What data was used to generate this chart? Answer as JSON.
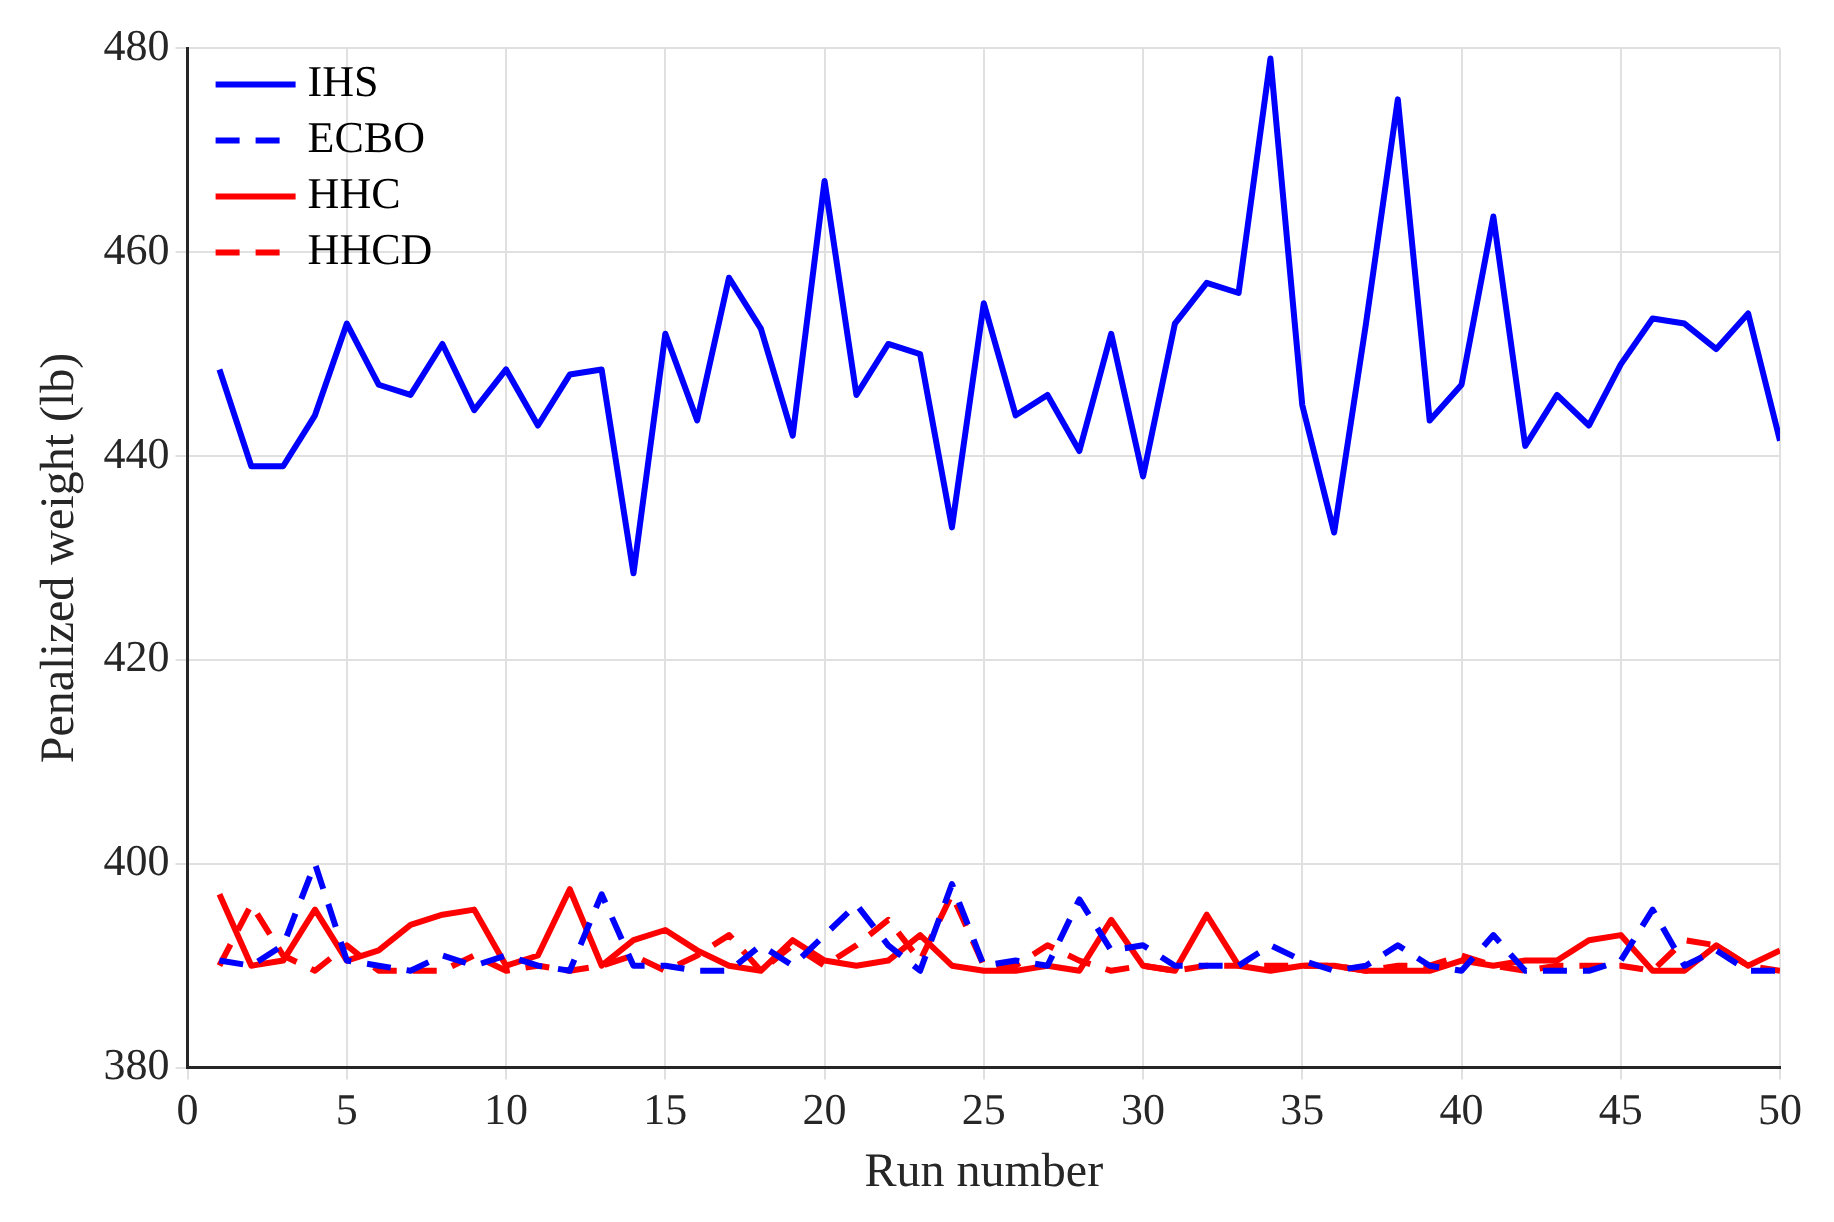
{
  "chart_data": {
    "type": "line",
    "xlabel": "Run number",
    "ylabel": "Penalized weight (lb)",
    "x": [
      1,
      2,
      3,
      4,
      5,
      6,
      7,
      8,
      9,
      10,
      11,
      12,
      13,
      14,
      15,
      16,
      17,
      18,
      19,
      20,
      21,
      22,
      23,
      24,
      25,
      26,
      27,
      28,
      29,
      30,
      31,
      32,
      33,
      34,
      35,
      36,
      37,
      38,
      39,
      40,
      41,
      42,
      43,
      44,
      45,
      46,
      47,
      48,
      49,
      50
    ],
    "series": [
      {
        "name": "IHS",
        "color": "#0000ff",
        "line_style": "solid",
        "values": [
          448.5,
          439,
          439,
          444,
          453,
          447,
          446,
          451,
          444.5,
          448.5,
          443,
          448,
          448.5,
          428.5,
          452,
          443.5,
          457.5,
          452.5,
          442,
          467,
          446,
          451,
          450,
          433,
          455,
          444,
          446,
          440.5,
          452,
          438,
          453,
          457,
          456,
          479,
          445,
          432.5,
          453,
          475,
          443.5,
          447,
          463.5,
          441,
          446,
          443,
          449,
          453.5,
          453,
          450.5,
          454,
          441.5
        ]
      },
      {
        "name": "ECBO",
        "color": "#0000ff",
        "line_style": "dashed",
        "values": [
          390.5,
          390,
          392,
          400,
          390.5,
          390,
          389.5,
          391,
          390,
          391,
          390,
          389.5,
          397,
          390,
          390,
          389.5,
          389.5,
          392,
          390,
          393,
          396,
          392,
          389.5,
          398,
          390,
          390.5,
          390,
          396.5,
          391.5,
          392,
          390,
          390,
          390,
          392,
          390.5,
          389.5,
          390,
          392,
          390,
          389.5,
          393,
          389.5,
          389.5,
          389.5,
          390.5,
          395.5,
          390,
          391.5,
          389.5,
          389.5
        ]
      },
      {
        "name": "HHC",
        "color": "#ff0000",
        "line_style": "solid",
        "values": [
          397,
          390,
          390.5,
          395.5,
          390.5,
          391.5,
          394,
          395,
          395.5,
          390,
          391,
          397.5,
          390,
          392.5,
          393.5,
          391.5,
          390,
          389.5,
          392.5,
          390.5,
          390,
          390.5,
          393,
          390,
          389.5,
          389.5,
          390,
          389.5,
          394.5,
          390,
          389.5,
          395,
          390,
          389.5,
          390,
          390,
          389.5,
          389.5,
          389.5,
          390.5,
          390,
          390.5,
          390.5,
          392.5,
          393,
          389.5,
          389.5,
          392,
          390,
          391.5
        ]
      },
      {
        "name": "HHCD",
        "color": "#ff0000",
        "line_style": "dashed",
        "values": [
          390,
          396,
          391,
          389.5,
          392,
          389.5,
          389.5,
          389.5,
          391,
          389.5,
          390,
          389.5,
          390,
          391,
          389.5,
          391,
          393,
          389.5,
          392,
          390,
          392,
          394.5,
          390.5,
          397,
          390,
          390,
          392,
          390.5,
          389.5,
          390,
          389.5,
          390,
          390,
          390,
          390,
          390,
          389.5,
          390,
          390,
          391,
          390,
          389.5,
          390,
          390,
          390,
          389.5,
          392.5,
          392,
          390,
          389.5
        ]
      }
    ],
    "xlim": [
      0,
      50
    ],
    "xticks": [
      0,
      5,
      10,
      15,
      20,
      25,
      30,
      35,
      40,
      45,
      50
    ],
    "ylim": [
      380,
      480
    ],
    "yticks": [
      380,
      400,
      420,
      440,
      460,
      480
    ],
    "grid": true,
    "legend": "top left",
    "marker": "none"
  }
}
